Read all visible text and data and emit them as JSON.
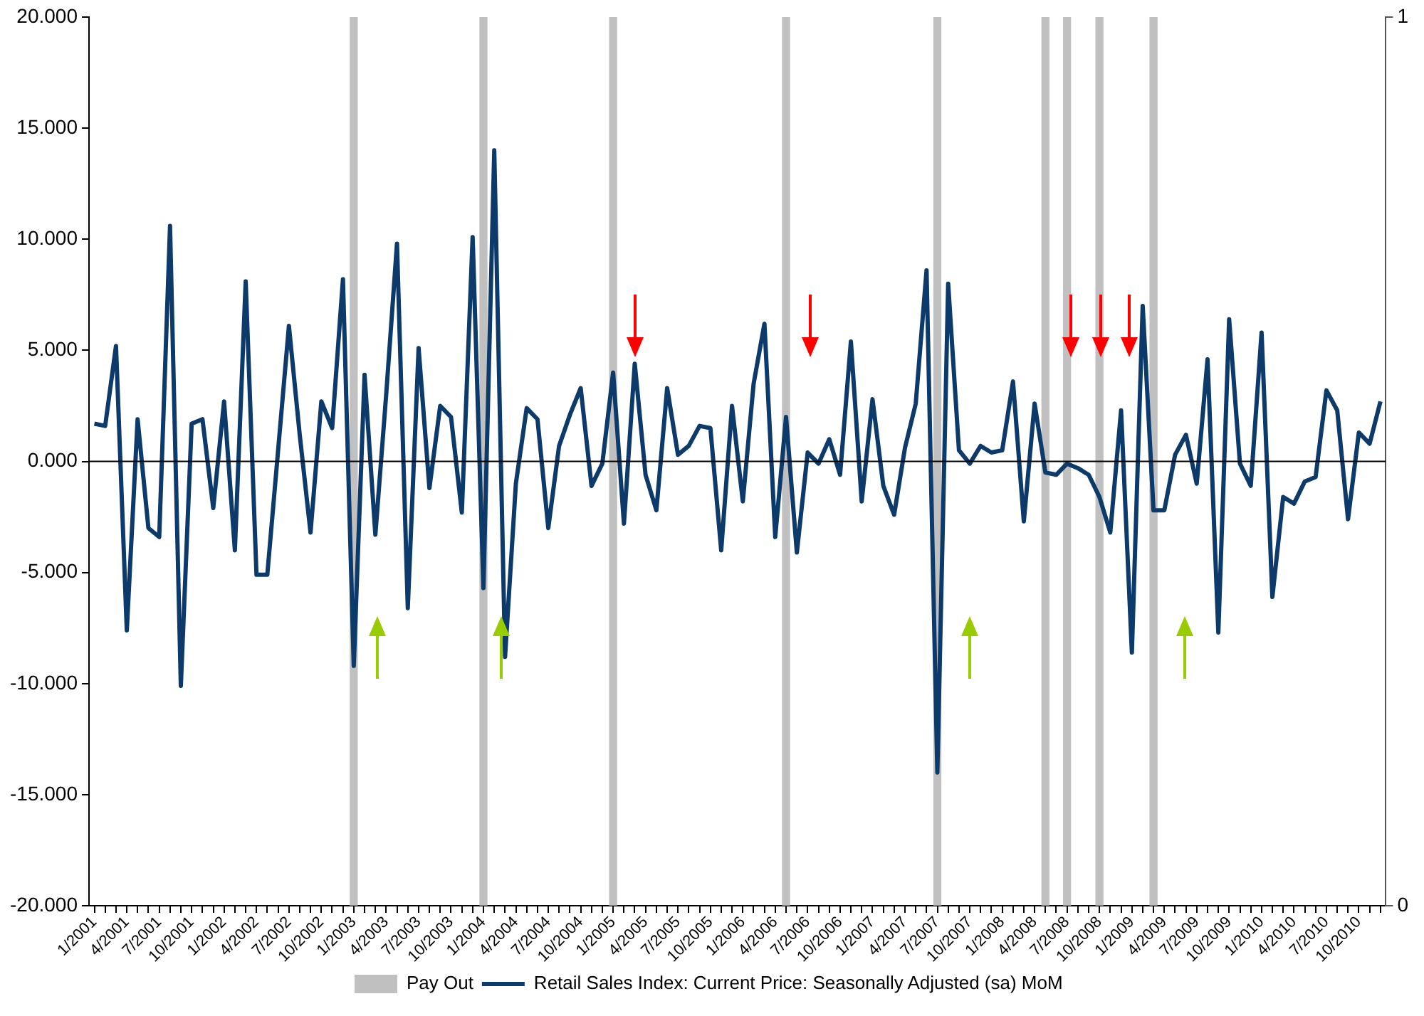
{
  "chart_data": {
    "type": "line",
    "categories": [
      "1/2001",
      null,
      null,
      "4/2001",
      null,
      null,
      "7/2001",
      null,
      null,
      "10/2001",
      null,
      null,
      "1/2002",
      null,
      null,
      "4/2002",
      null,
      null,
      "7/2002",
      null,
      null,
      "10/2002",
      null,
      null,
      "1/2003",
      null,
      null,
      "4/2003",
      null,
      null,
      "7/2003",
      null,
      null,
      "10/2003",
      null,
      null,
      "1/2004",
      null,
      null,
      "4/2004",
      null,
      null,
      "7/2004",
      null,
      null,
      "10/2004",
      null,
      null,
      "1/2005",
      null,
      null,
      "4/2005",
      null,
      null,
      "7/2005",
      null,
      null,
      "10/2005",
      null,
      null,
      "1/2006",
      null,
      null,
      "4/2006",
      null,
      null,
      "7/2006",
      null,
      null,
      "10/2006",
      null,
      null,
      "1/2007",
      null,
      null,
      "4/2007",
      null,
      null,
      "7/2007",
      null,
      null,
      "10/2007",
      null,
      null,
      "1/2008",
      null,
      null,
      "4/2008",
      null,
      null,
      "7/2008",
      null,
      null,
      "10/2008",
      null,
      null,
      "1/2009",
      null,
      null,
      "4/2009",
      null,
      null,
      "7/2009",
      null,
      null,
      "10/2009",
      null,
      null,
      "1/2010",
      null,
      null,
      "4/2010",
      null,
      null,
      "7/2010",
      null,
      null,
      "10/2010",
      null,
      null
    ],
    "series": [
      {
        "name": "Pay Out",
        "type": "bar",
        "axis": "y2",
        "color": "#c0c0c0",
        "values": [
          null,
          null,
          null,
          null,
          null,
          null,
          null,
          null,
          null,
          null,
          null,
          null,
          null,
          null,
          null,
          null,
          null,
          null,
          null,
          null,
          null,
          null,
          null,
          null,
          1,
          null,
          null,
          null,
          null,
          null,
          null,
          null,
          null,
          null,
          null,
          null,
          1,
          null,
          null,
          null,
          null,
          null,
          null,
          null,
          null,
          null,
          null,
          null,
          1,
          null,
          null,
          null,
          null,
          null,
          null,
          null,
          null,
          null,
          null,
          null,
          null,
          null,
          null,
          null,
          1,
          null,
          null,
          null,
          null,
          null,
          null,
          null,
          null,
          null,
          null,
          null,
          null,
          null,
          1,
          null,
          null,
          null,
          null,
          null,
          null,
          null,
          null,
          null,
          1,
          null,
          1,
          null,
          null,
          1,
          null,
          null,
          null,
          null,
          1,
          null,
          null,
          null,
          null,
          null,
          null,
          null,
          null,
          null,
          null,
          null,
          null,
          null,
          null,
          null,
          null,
          null,
          null,
          null,
          null,
          null
        ]
      },
      {
        "name": "Retail Sales Index: Current Price: Seasonally Adjusted (sa) MoM",
        "color": "#0b3a6b",
        "values": [
          1.7,
          1.6,
          5.2,
          -7.6,
          1.9,
          -3.0,
          -3.4,
          10.6,
          -10.1,
          1.7,
          1.9,
          -2.1,
          2.7,
          -4.0,
          8.1,
          -5.1,
          -5.1,
          0.5,
          6.1,
          1.2,
          -3.2,
          2.7,
          1.5,
          8.2,
          -9.2,
          3.9,
          -3.3,
          3.0,
          9.8,
          -6.6,
          5.1,
          -1.2,
          2.5,
          2.0,
          -2.3,
          10.1,
          -5.7,
          14.0,
          -8.8,
          -1.0,
          2.4,
          1.9,
          -3.0,
          0.7,
          2.1,
          3.3,
          -1.1,
          -0.1,
          4.0,
          -2.8,
          4.4,
          -0.6,
          -2.2,
          3.3,
          0.3,
          0.7,
          1.6,
          1.5,
          -4.0,
          2.5,
          -1.8,
          3.5,
          6.2,
          -3.4,
          2.0,
          -4.1,
          0.4,
          -0.1,
          1.0,
          -0.6,
          5.4,
          -1.8,
          2.8,
          -1.1,
          -2.4,
          0.6,
          2.6,
          8.6,
          -14.0,
          8.0,
          0.5,
          -0.1,
          0.7,
          0.4,
          0.5,
          3.6,
          -2.7,
          2.6,
          -0.5,
          -0.6,
          -0.1,
          -0.3,
          -0.6,
          -1.6,
          -3.2,
          2.3,
          -8.6,
          7.0,
          -2.2,
          -2.2,
          0.3,
          1.2,
          -1.0,
          4.6,
          -7.7,
          6.4,
          -0.1,
          -1.1,
          5.8,
          -6.1,
          -1.6,
          -1.9,
          -0.9,
          -0.7,
          3.2,
          2.3,
          -2.6,
          1.3,
          0.8,
          2.7
        ]
      }
    ],
    "ylim": [
      -20,
      20
    ],
    "yticks": [
      {
        "value": -20,
        "label": "-20.000"
      },
      {
        "value": -15,
        "label": "-15.000"
      },
      {
        "value": -10,
        "label": "-10.000"
      },
      {
        "value": -5,
        "label": "-5.000"
      },
      {
        "value": 0,
        "label": "0.000"
      },
      {
        "value": 5,
        "label": "5.000"
      },
      {
        "value": 10,
        "label": "10.000"
      },
      {
        "value": 15,
        "label": "15.000"
      },
      {
        "value": 20,
        "label": "20.000"
      }
    ],
    "y2lim": [
      0,
      1
    ],
    "y2ticks": [
      0,
      1
    ],
    "ref_lines": [
      {
        "axis": "y",
        "value": 0,
        "color": "#000000"
      }
    ],
    "grid": false,
    "legend": "bottom",
    "marker": "none"
  }
}
